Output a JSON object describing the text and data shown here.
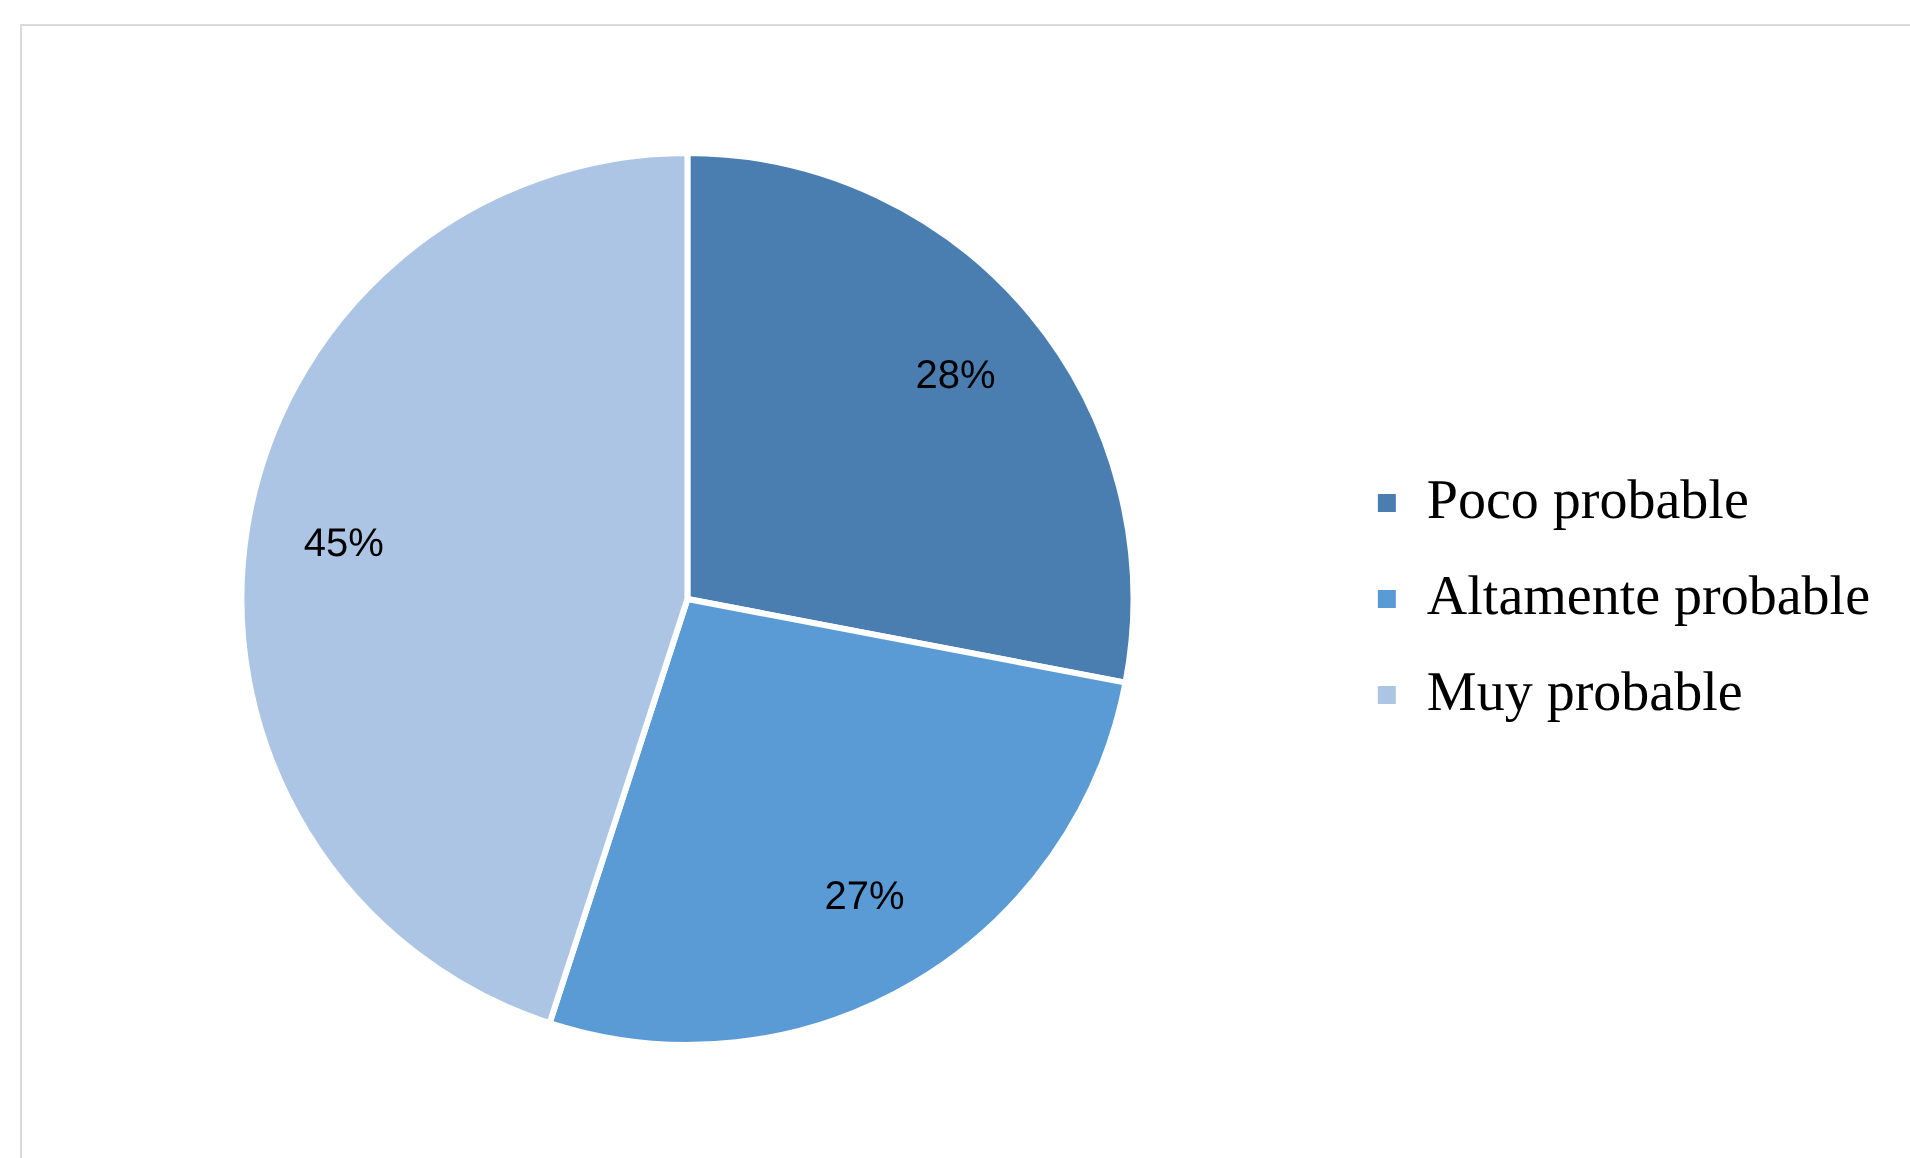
{
  "chart_data": {
    "type": "pie",
    "categories": [
      "Poco probable",
      "Altamente probable",
      "Muy probable"
    ],
    "values": [
      28,
      27,
      45
    ],
    "value_labels": [
      "28%",
      "27%",
      "45%"
    ],
    "colors": [
      "#4a7eb1",
      "#5b9bd5",
      "#adc5e5"
    ],
    "legend": "right"
  }
}
